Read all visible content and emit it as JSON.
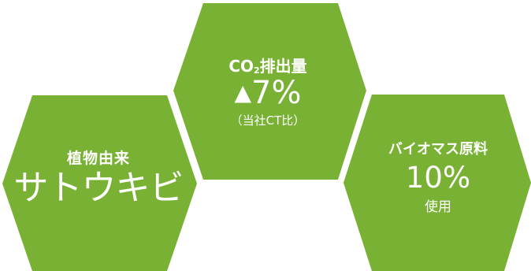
{
  "colors": {
    "hexagon_fill": "#78b133",
    "text": "#ffffff"
  },
  "left_hexagon": {
    "label": "植物由来",
    "main": "サトウキビ"
  },
  "top_hexagon": {
    "label_prefix": "CO",
    "label_subscript": "2",
    "label_suffix": "排出量",
    "main_symbol": "▲",
    "main_value": "7%",
    "note": "（当社CT比）"
  },
  "right_hexagon": {
    "label": "バイオマス原料",
    "main_value": "10%",
    "note": "使用"
  }
}
